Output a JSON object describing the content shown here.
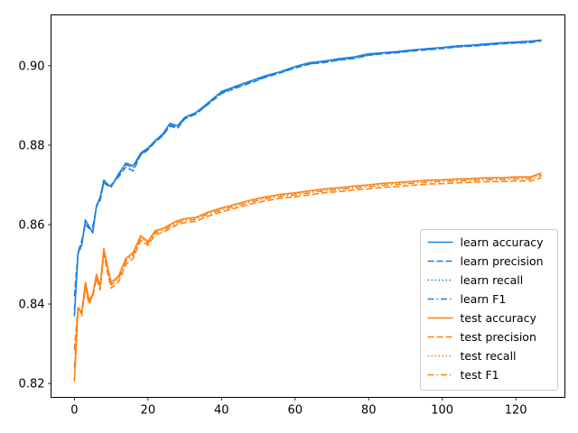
{
  "chart_data": {
    "type": "line",
    "title": "",
    "xlabel": "",
    "ylabel": "",
    "xlim": [
      -6.35,
      133.35
    ],
    "ylim": [
      0.8165,
      0.9128
    ],
    "xticks": [
      0,
      20,
      40,
      60,
      80,
      100,
      120
    ],
    "xtick_labels": [
      "0",
      "20",
      "40",
      "60",
      "80",
      "100",
      "120"
    ],
    "yticks": [
      0.82,
      0.84,
      0.86,
      0.88,
      0.9
    ],
    "ytick_labels": [
      "0.82",
      "0.84",
      "0.86",
      "0.88",
      "0.90"
    ],
    "grid": false,
    "legend_position": "lower-right",
    "x": [
      0,
      1,
      2,
      3,
      4,
      5,
      6,
      7,
      8,
      9,
      10,
      12,
      14,
      16,
      18,
      20,
      22,
      24,
      26,
      28,
      30,
      33,
      36,
      40,
      44,
      48,
      52,
      56,
      60,
      64,
      68,
      72,
      76,
      80,
      84,
      88,
      92,
      96,
      100,
      104,
      108,
      112,
      116,
      120,
      124,
      127
    ],
    "series": [
      {
        "name": "learn accuracy",
        "color": "#1f7fdc",
        "dash": "solid",
        "values": [
          0.8369,
          0.8529,
          0.8549,
          0.8612,
          0.8595,
          0.8579,
          0.8648,
          0.8669,
          0.8712,
          0.8702,
          0.8695,
          0.8728,
          0.8755,
          0.8748,
          0.878,
          0.8793,
          0.8812,
          0.8828,
          0.8855,
          0.8849,
          0.887,
          0.8882,
          0.8904,
          0.8935,
          0.8949,
          0.8962,
          0.8975,
          0.8985,
          0.8998,
          0.9008,
          0.9012,
          0.9018,
          0.9022,
          0.903,
          0.9033,
          0.9036,
          0.904,
          0.9043,
          0.9046,
          0.905,
          0.9052,
          0.9055,
          0.9058,
          0.906,
          0.9062,
          0.9065
        ]
      },
      {
        "name": "learn precision",
        "color": "#1f7fdc",
        "dash": "dashed",
        "values": [
          0.842,
          0.8531,
          0.856,
          0.86,
          0.859,
          0.8595,
          0.8645,
          0.866,
          0.8705,
          0.8698,
          0.87,
          0.872,
          0.8745,
          0.8735,
          0.8775,
          0.8788,
          0.8808,
          0.8823,
          0.8848,
          0.8842,
          0.8866,
          0.8878,
          0.89,
          0.893,
          0.8944,
          0.8957,
          0.8971,
          0.8982,
          0.8994,
          0.9004,
          0.9008,
          0.9014,
          0.9018,
          0.9026,
          0.903,
          0.9033,
          0.9037,
          0.904,
          0.9043,
          0.9047,
          0.9049,
          0.9052,
          0.9055,
          0.9057,
          0.9058,
          0.9063
        ]
      },
      {
        "name": "learn recall",
        "color": "#1f7fdc",
        "dash": "dotted",
        "values": [
          0.8375,
          0.8527,
          0.8545,
          0.8608,
          0.8592,
          0.858,
          0.8646,
          0.8667,
          0.8709,
          0.87,
          0.8694,
          0.8726,
          0.8753,
          0.8746,
          0.8778,
          0.8791,
          0.881,
          0.8826,
          0.8853,
          0.8847,
          0.8868,
          0.888,
          0.8902,
          0.8933,
          0.8947,
          0.896,
          0.8973,
          0.8983,
          0.8996,
          0.9006,
          0.901,
          0.9016,
          0.902,
          0.9028,
          0.9031,
          0.9034,
          0.9038,
          0.9041,
          0.9044,
          0.9048,
          0.905,
          0.9053,
          0.9056,
          0.9058,
          0.906,
          0.9064
        ]
      },
      {
        "name": "learn F1",
        "color": "#1f7fdc",
        "dash": "dashdot",
        "values": [
          0.8385,
          0.8528,
          0.855,
          0.8605,
          0.8593,
          0.8585,
          0.8645,
          0.8665,
          0.8707,
          0.8699,
          0.8696,
          0.8724,
          0.8751,
          0.8743,
          0.8777,
          0.879,
          0.8809,
          0.8825,
          0.8851,
          0.8845,
          0.8867,
          0.8879,
          0.8901,
          0.8932,
          0.8946,
          0.8959,
          0.8972,
          0.8983,
          0.8995,
          0.9005,
          0.9009,
          0.9015,
          0.9019,
          0.9027,
          0.9031,
          0.9034,
          0.9038,
          0.9041,
          0.9044,
          0.9048,
          0.905,
          0.9053,
          0.9056,
          0.9058,
          0.9059,
          0.9064
        ]
      },
      {
        "name": "test accuracy",
        "color": "#ff7f0e",
        "dash": "solid",
        "values": [
          0.8205,
          0.839,
          0.838,
          0.8455,
          0.841,
          0.8425,
          0.8475,
          0.8445,
          0.854,
          0.8495,
          0.8455,
          0.847,
          0.8515,
          0.853,
          0.8572,
          0.8558,
          0.8585,
          0.859,
          0.86,
          0.861,
          0.8615,
          0.8618,
          0.863,
          0.8642,
          0.8652,
          0.8662,
          0.867,
          0.8676,
          0.868,
          0.8685,
          0.869,
          0.8693,
          0.8697,
          0.87,
          0.8704,
          0.8706,
          0.8709,
          0.8712,
          0.8713,
          0.8715,
          0.8716,
          0.8718,
          0.8718,
          0.872,
          0.872,
          0.873
        ]
      },
      {
        "name": "test precision",
        "color": "#ff7f0e",
        "dash": "dashed",
        "values": [
          0.8285,
          0.8395,
          0.837,
          0.844,
          0.84,
          0.842,
          0.8465,
          0.8435,
          0.8525,
          0.848,
          0.844,
          0.8455,
          0.85,
          0.8515,
          0.856,
          0.8548,
          0.8575,
          0.858,
          0.859,
          0.86,
          0.8605,
          0.8608,
          0.862,
          0.8632,
          0.8642,
          0.8652,
          0.866,
          0.8666,
          0.867,
          0.8675,
          0.868,
          0.8683,
          0.8687,
          0.869,
          0.8694,
          0.8696,
          0.8699,
          0.8702,
          0.8703,
          0.8705,
          0.8706,
          0.8708,
          0.8708,
          0.871,
          0.871,
          0.8718
        ]
      },
      {
        "name": "test recall",
        "color": "#ff7f0e",
        "dash": "dotted",
        "values": [
          0.8212,
          0.8388,
          0.8378,
          0.8452,
          0.8408,
          0.8423,
          0.8472,
          0.8442,
          0.8537,
          0.8492,
          0.8452,
          0.8467,
          0.8512,
          0.8527,
          0.8569,
          0.8556,
          0.8583,
          0.8588,
          0.8598,
          0.8608,
          0.8613,
          0.8616,
          0.8628,
          0.864,
          0.865,
          0.866,
          0.8668,
          0.8674,
          0.8678,
          0.8683,
          0.8688,
          0.8691,
          0.8695,
          0.8698,
          0.8702,
          0.8704,
          0.8707,
          0.871,
          0.8711,
          0.8713,
          0.8714,
          0.8716,
          0.8716,
          0.8718,
          0.8718,
          0.8727
        ]
      },
      {
        "name": "test F1",
        "color": "#ff7f0e",
        "dash": "dashdot",
        "values": [
          0.824,
          0.8391,
          0.8375,
          0.8448,
          0.8405,
          0.8422,
          0.847,
          0.844,
          0.8532,
          0.8488,
          0.8448,
          0.8463,
          0.8508,
          0.8523,
          0.8566,
          0.8553,
          0.858,
          0.8585,
          0.8595,
          0.8605,
          0.861,
          0.8613,
          0.8625,
          0.8637,
          0.8647,
          0.8657,
          0.8665,
          0.8671,
          0.8675,
          0.868,
          0.8685,
          0.8688,
          0.8692,
          0.8695,
          0.8699,
          0.8701,
          0.8704,
          0.8707,
          0.8708,
          0.871,
          0.8711,
          0.8713,
          0.8713,
          0.8715,
          0.8715,
          0.8724
        ]
      }
    ]
  }
}
